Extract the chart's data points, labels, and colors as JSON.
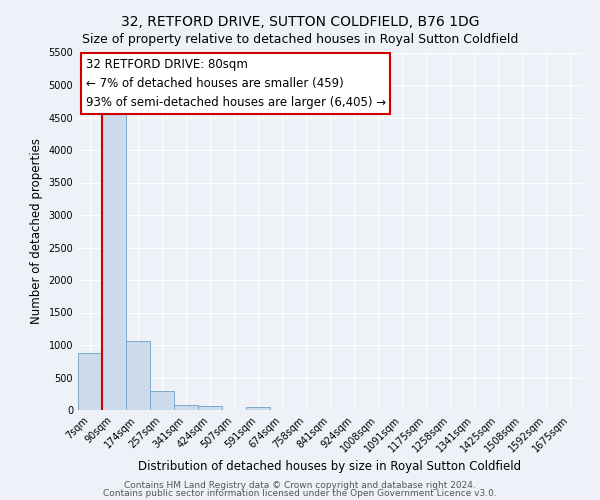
{
  "title": "32, RETFORD DRIVE, SUTTON COLDFIELD, B76 1DG",
  "subtitle": "Size of property relative to detached houses in Royal Sutton Coldfield",
  "xlabel": "Distribution of detached houses by size in Royal Sutton Coldfield",
  "ylabel": "Number of detached properties",
  "categories": [
    "7sqm",
    "90sqm",
    "174sqm",
    "257sqm",
    "341sqm",
    "424sqm",
    "507sqm",
    "591sqm",
    "674sqm",
    "758sqm",
    "841sqm",
    "924sqm",
    "1008sqm",
    "1091sqm",
    "1175sqm",
    "1258sqm",
    "1341sqm",
    "1425sqm",
    "1508sqm",
    "1592sqm",
    "1675sqm"
  ],
  "values": [
    880,
    4550,
    1060,
    290,
    75,
    55,
    0,
    50,
    0,
    0,
    0,
    0,
    0,
    0,
    0,
    0,
    0,
    0,
    0,
    0,
    0
  ],
  "bar_color": "#ccdaeb",
  "bar_edge_color": "#7aaac8",
  "ylim": [
    0,
    5500
  ],
  "yticks": [
    0,
    500,
    1000,
    1500,
    2000,
    2500,
    3000,
    3500,
    4000,
    4500,
    5000,
    5500
  ],
  "annotation_line1": "32 RETFORD DRIVE: 80sqm",
  "annotation_line2": "← 7% of detached houses are smaller (459)",
  "annotation_line3": "93% of semi-detached houses are larger (6,405) →",
  "footer1": "Contains HM Land Registry data © Crown copyright and database right 2024.",
  "footer2": "Contains public sector information licensed under the Open Government Licence v3.0.",
  "background_color": "#eef2f8",
  "plot_bg_color": "#eef2f8",
  "annotation_box_color": "#ffffff",
  "annotation_box_edge": "#cc0000",
  "red_line_color": "#cc0000",
  "title_fontsize": 10,
  "subtitle_fontsize": 9,
  "tick_fontsize": 7,
  "label_fontsize": 8.5,
  "footer_fontsize": 6.5,
  "annotation_fontsize": 8.5
}
